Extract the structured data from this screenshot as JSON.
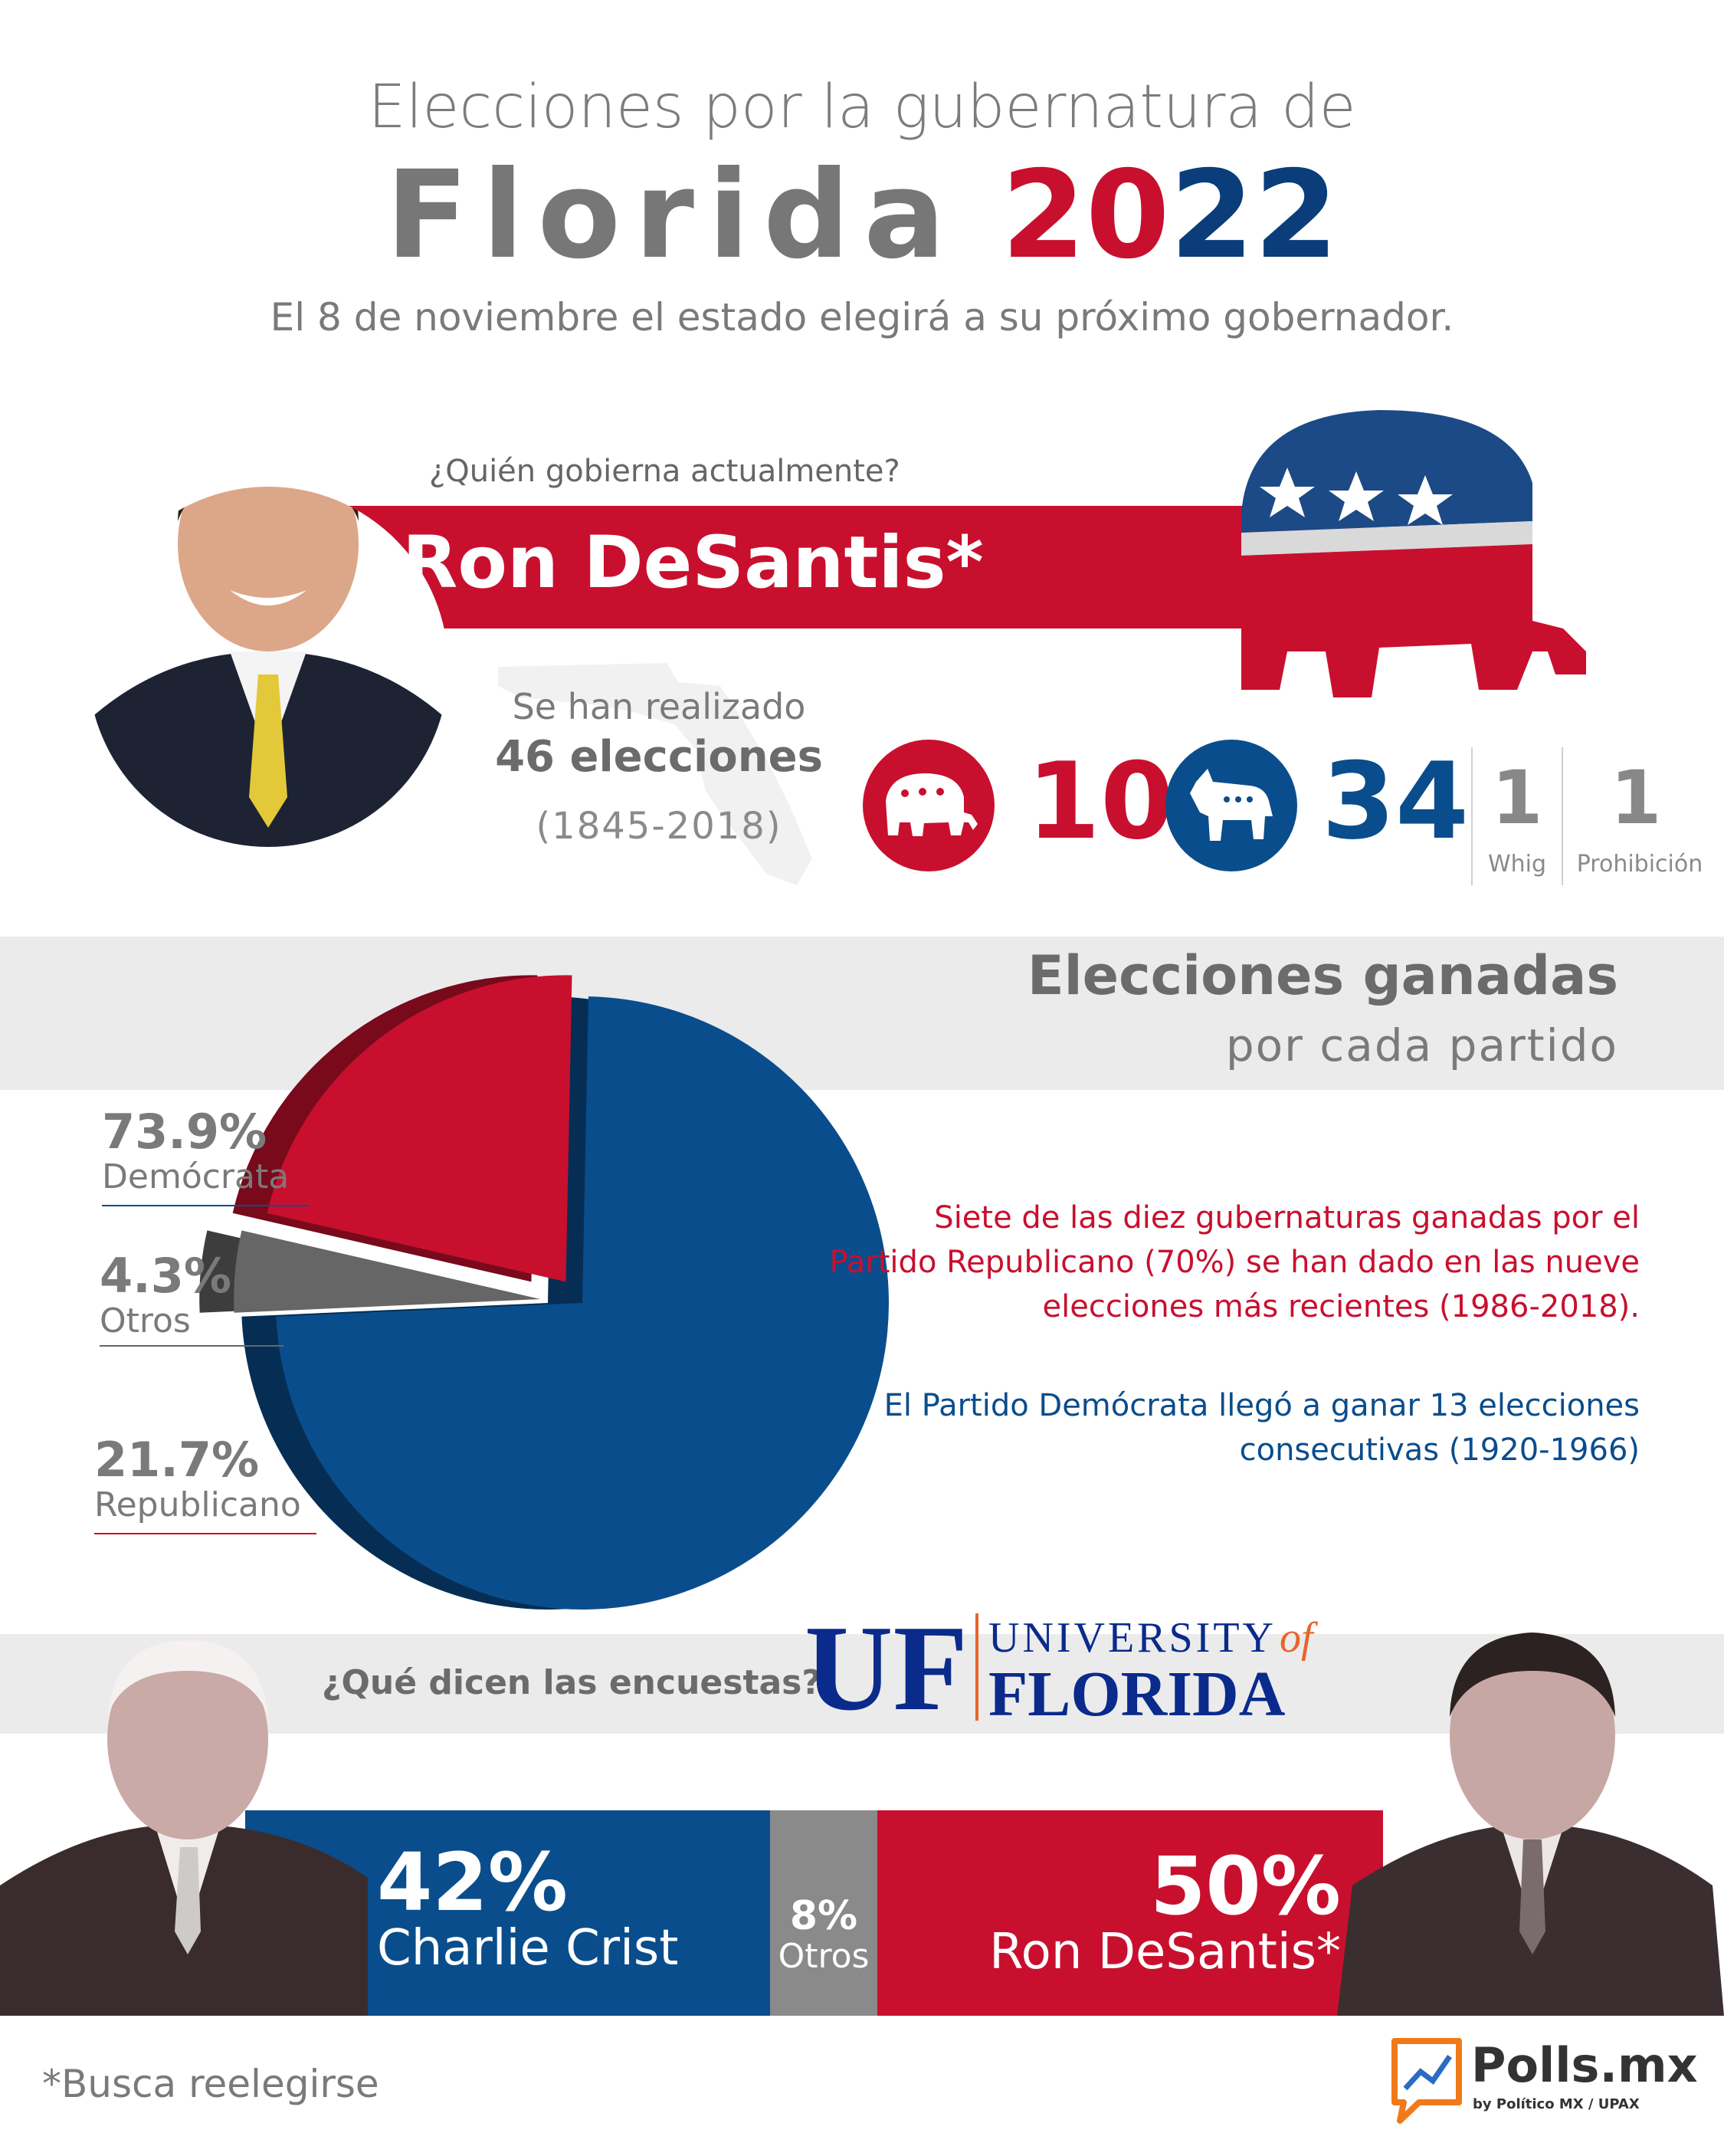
{
  "header": {
    "line1": "Elecciones por la gubernatura de",
    "state": "Florida",
    "year_a": "20",
    "year_b": "22",
    "subtitle": "El 8 de noviembre el estado elegirá a su próximo gobernador."
  },
  "governor": {
    "question": "¿Quién gobierna actualmente?",
    "name": "Ron DeSantis*",
    "photo_icon": "portrait-photo"
  },
  "elections": {
    "line1": "Se han realizado",
    "line2": "46 elecciones",
    "line3": "(1845-2018)",
    "republican": "10",
    "democrat": "34",
    "whig": "1",
    "whig_label": "Whig",
    "prohibition": "1",
    "prohibition_label": "Prohibición"
  },
  "colors": {
    "republican": "#c8102e",
    "democrat": "#0a4d8c",
    "others": "#666666",
    "band": "#ebebeb"
  },
  "chart_data": [
    {
      "type": "pie",
      "title": "Elecciones ganadas",
      "subtitle": "por cada partido",
      "slices": [
        {
          "label": "Demócrata",
          "value": 73.9,
          "display": "73.9%",
          "color": "#0a4d8c"
        },
        {
          "label": "Otros",
          "value": 4.3,
          "display": "4.3%",
          "color": "#666666"
        },
        {
          "label": "Republicano",
          "value": 21.7,
          "display": "21.7%",
          "color": "#c8102e"
        }
      ]
    },
    {
      "type": "bar",
      "title": "¿Qué dicen las encuestas?",
      "source": "UNIVERSITY of FLORIDA",
      "stacked": true,
      "segments": [
        {
          "name": "Charlie Crist",
          "value": 42,
          "display": "42%",
          "color": "#0a4d8c"
        },
        {
          "name": "Otros",
          "value": 8,
          "display": "8%",
          "color": "#8a8a8a"
        },
        {
          "name": "Ron DeSantis*",
          "value": 50,
          "display": "50%",
          "color": "#c8102e"
        }
      ]
    }
  ],
  "notes": {
    "republican": "Siete de las diez gubernaturas ganadas por el Partido Republicano (70%) se han dado en las nueve elecciones más recientes (1986-2018).",
    "democrat": "El Partido Demócrata llegó a ganar 13 elecciones consecutivas (1920-1966)"
  },
  "poll_logo": {
    "uf": "UF",
    "university": "UNIVERSITY",
    "of": "of",
    "florida": "FLORIDA"
  },
  "footer": {
    "footnote": "*Busca reelegirse",
    "brand": "Polls.mx",
    "brand_by": "by Político MX / UPAX"
  }
}
